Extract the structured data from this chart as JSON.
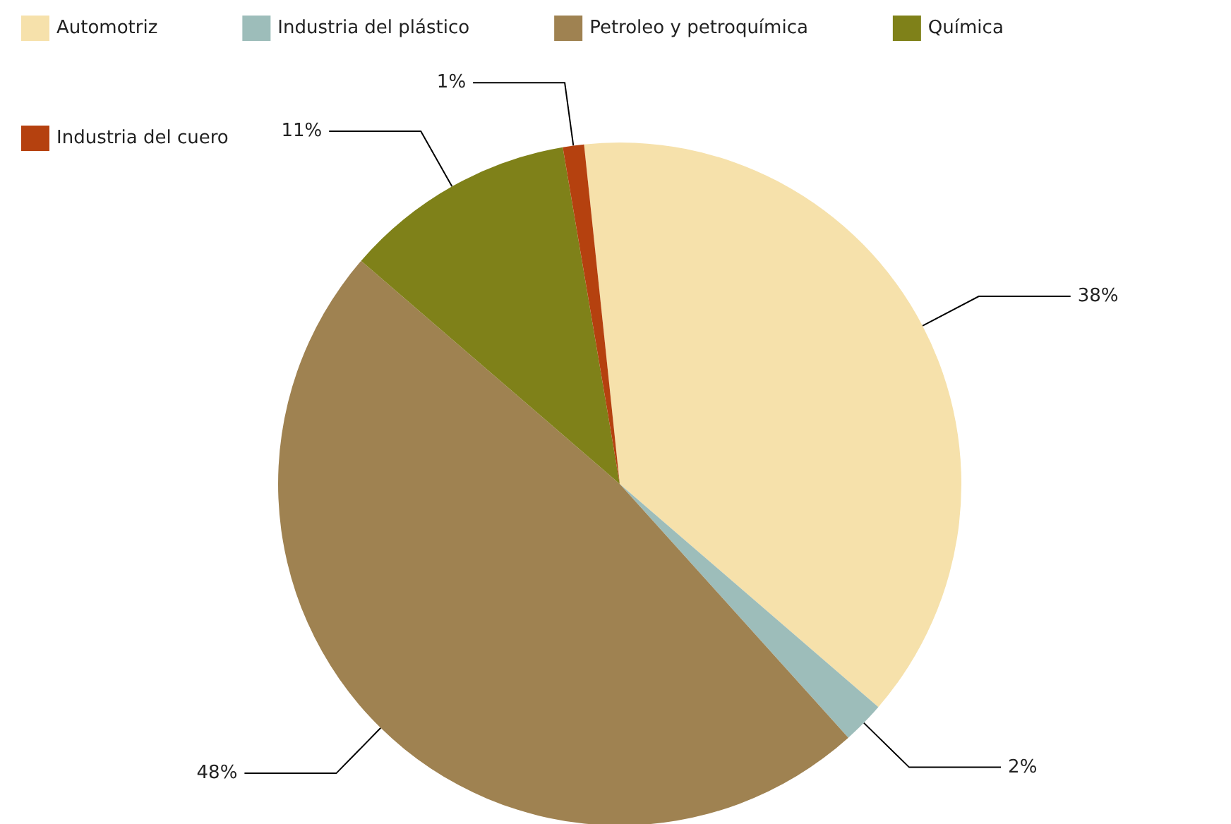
{
  "chart_data": {
    "type": "pie",
    "categories": [
      "Automotriz",
      "Industria del plástico",
      "Petroleo y petroquímica",
      "Química",
      "Industria del cuero"
    ],
    "values": [
      38,
      2,
      48,
      11,
      1
    ],
    "value_labels": [
      "38%",
      "2%",
      "48%",
      "11%",
      "1%"
    ],
    "colors": [
      "#f6e1ab",
      "#9dbdba",
      "#9f8251",
      "#7f8119",
      "#b5410f"
    ],
    "legend": "top"
  }
}
